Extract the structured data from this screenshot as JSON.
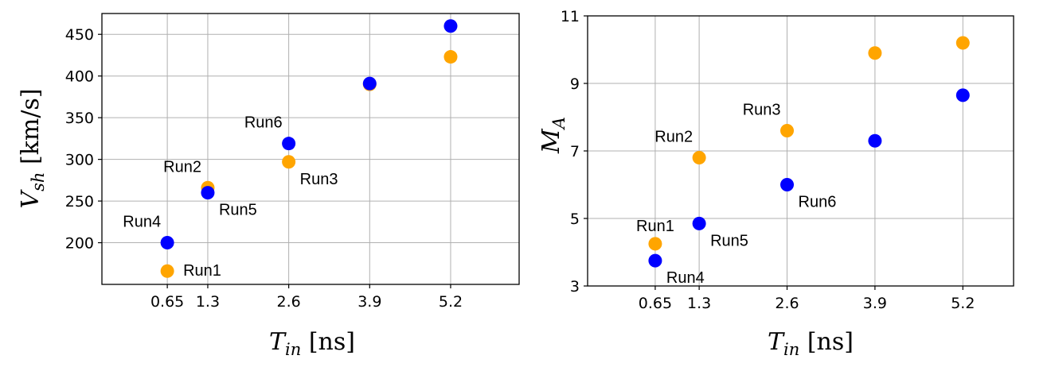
{
  "chart_data": [
    {
      "type": "scatter",
      "xlabel_main": "T",
      "xlabel_sub": "in",
      "xlabel_unit": "[ns]",
      "ylabel_main": "V",
      "ylabel_sub": "sh",
      "ylabel_unit": "[km/s]",
      "xlim": [
        -0.4,
        6.3
      ],
      "ylim": [
        150,
        475
      ],
      "xticks": [
        0.65,
        1.3,
        2.6,
        3.9,
        5.2
      ],
      "xtick_labels": [
        "0.65",
        "1.3",
        "2.6",
        "3.9",
        "5.2"
      ],
      "yticks": [
        200,
        250,
        300,
        350,
        400,
        450
      ],
      "ytick_labels": [
        "200",
        "250",
        "300",
        "350",
        "400",
        "450"
      ],
      "grid": true,
      "series": [
        {
          "color": "#FFA500",
          "points": [
            [
              0.65,
              166
            ],
            [
              1.3,
              266
            ],
            [
              2.6,
              297
            ],
            [
              3.9,
              390
            ],
            [
              5.2,
              423
            ]
          ]
        },
        {
          "color": "#0000FF",
          "points": [
            [
              0.65,
              200
            ],
            [
              1.3,
              260
            ],
            [
              2.6,
              319
            ],
            [
              3.9,
              391
            ],
            [
              5.2,
              460
            ]
          ]
        }
      ],
      "annotations": [
        {
          "text": "Run1",
          "x": 0.65,
          "y": 166,
          "pos": "right"
        },
        {
          "text": "Run2",
          "x": 1.3,
          "y": 266,
          "pos": "above-left"
        },
        {
          "text": "Run3",
          "x": 2.6,
          "y": 297,
          "pos": "below-right"
        },
        {
          "text": "Run4",
          "x": 0.65,
          "y": 200,
          "pos": "above-left"
        },
        {
          "text": "Run5",
          "x": 1.3,
          "y": 260,
          "pos": "below-right"
        },
        {
          "text": "Run6",
          "x": 2.6,
          "y": 319,
          "pos": "above-left"
        }
      ]
    },
    {
      "type": "scatter",
      "xlabel_main": "T",
      "xlabel_sub": "in",
      "xlabel_unit": "[ns]",
      "ylabel_main": "M",
      "ylabel_sub": "A",
      "ylabel_unit": "",
      "xlim": [
        -0.35,
        5.95
      ],
      "ylim": [
        3,
        11
      ],
      "xticks": [
        0.65,
        1.3,
        2.6,
        3.9,
        5.2
      ],
      "xtick_labels": [
        "0.65",
        "1.3",
        "2.6",
        "3.9",
        "5.2"
      ],
      "yticks": [
        3,
        5,
        7,
        9,
        11
      ],
      "ytick_labels": [
        "3",
        "5",
        "7",
        "9",
        "11"
      ],
      "grid": true,
      "series": [
        {
          "color": "#FFA500",
          "points": [
            [
              0.65,
              4.25
            ],
            [
              1.3,
              6.8
            ],
            [
              2.6,
              7.6
            ],
            [
              3.9,
              9.9
            ],
            [
              5.2,
              10.2
            ]
          ]
        },
        {
          "color": "#0000FF",
          "points": [
            [
              0.65,
              3.75
            ],
            [
              1.3,
              4.85
            ],
            [
              2.6,
              6.0
            ],
            [
              3.9,
              7.3
            ],
            [
              5.2,
              8.65
            ]
          ]
        }
      ],
      "annotations": [
        {
          "text": "Run1",
          "x": 0.65,
          "y": 4.25,
          "pos": "above"
        },
        {
          "text": "Run2",
          "x": 1.3,
          "y": 6.8,
          "pos": "above-left"
        },
        {
          "text": "Run3",
          "x": 2.6,
          "y": 7.6,
          "pos": "above-left"
        },
        {
          "text": "Run4",
          "x": 0.65,
          "y": 3.75,
          "pos": "below-right"
        },
        {
          "text": "Run5",
          "x": 1.3,
          "y": 4.85,
          "pos": "below-right"
        },
        {
          "text": "Run6",
          "x": 2.6,
          "y": 6.0,
          "pos": "below-right"
        }
      ]
    }
  ]
}
